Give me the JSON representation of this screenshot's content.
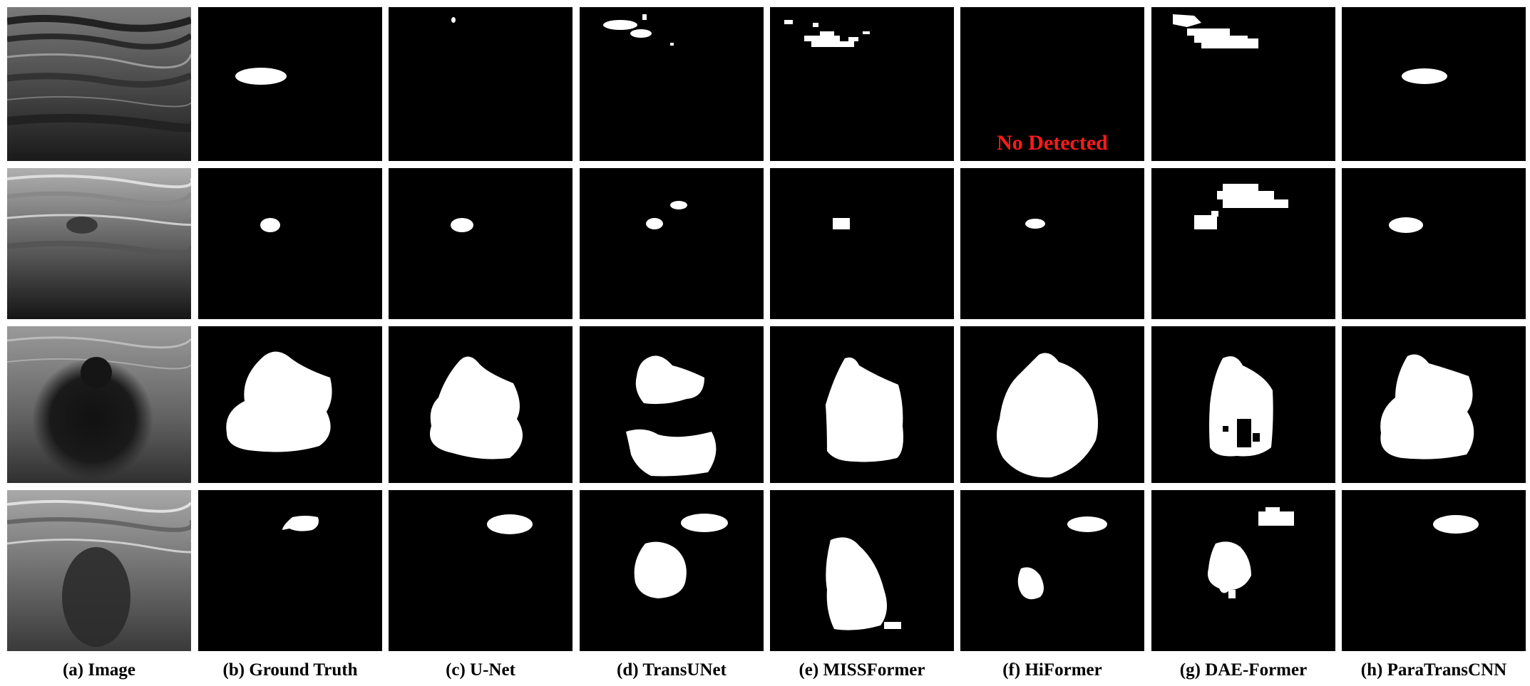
{
  "figure": {
    "columns": [
      {
        "caption": "(a) Image"
      },
      {
        "caption": "(b) Ground Truth"
      },
      {
        "caption": "(c) U-Net"
      },
      {
        "caption": "(d) TransUNet"
      },
      {
        "caption": "(e) MISSFormer"
      },
      {
        "caption": "(f) HiFormer"
      },
      {
        "caption": "(g) DAE-Former"
      },
      {
        "caption": "(h) ParaTransCNN"
      }
    ],
    "annotation": "No Detected",
    "colors": {
      "background": "#000000",
      "mask": "#ffffff",
      "annotation": "#ff1a1a"
    }
  }
}
